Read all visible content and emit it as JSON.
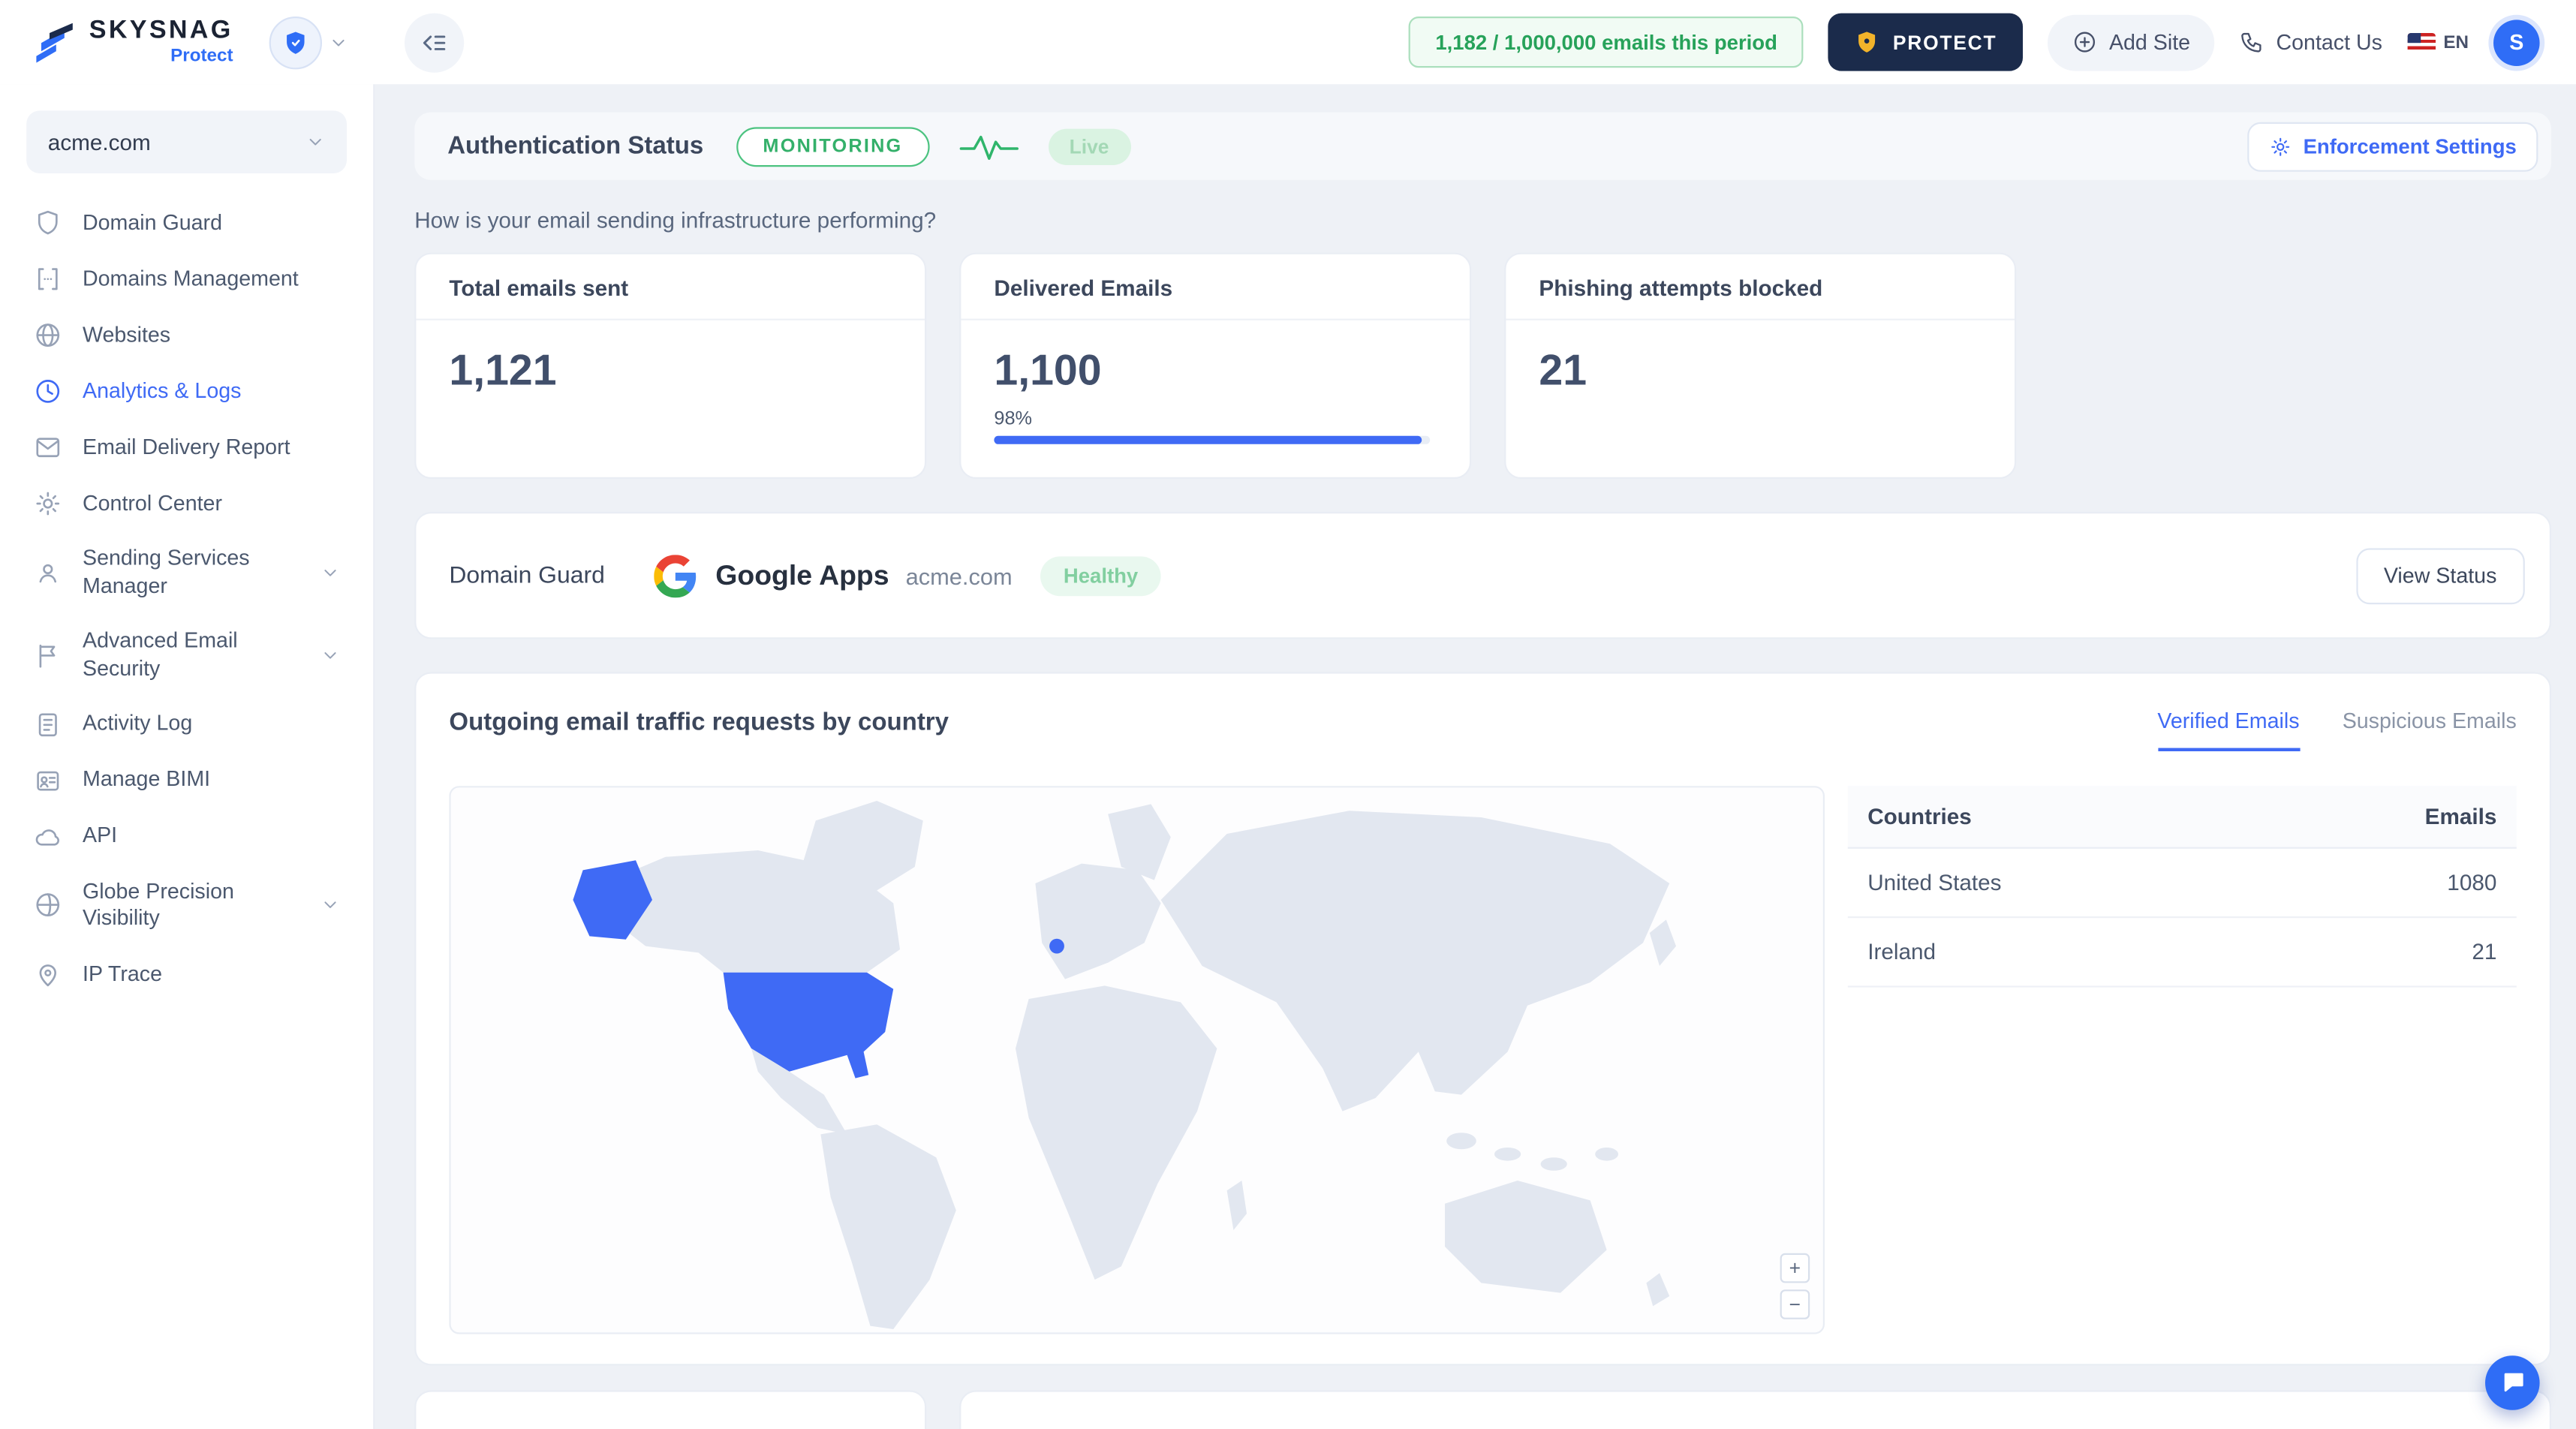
{
  "brand": {
    "name": "SKYSNAG",
    "product": "Protect"
  },
  "header": {
    "usage_pill": "1,182 / 1,000,000 emails this period",
    "protect_button": "PROTECT",
    "add_site_button": "Add Site",
    "contact_us": "Contact Us",
    "language": "EN",
    "avatar_initial": "S"
  },
  "sidebar": {
    "domain_selector": "acme.com",
    "items": [
      {
        "label": "Domain Guard"
      },
      {
        "label": "Domains Management"
      },
      {
        "label": "Websites"
      },
      {
        "label": "Analytics & Logs"
      },
      {
        "label": "Email Delivery Report"
      },
      {
        "label": "Control Center"
      },
      {
        "label": "Sending Services Manager"
      },
      {
        "label": "Advanced Email Security"
      },
      {
        "label": "Activity Log"
      },
      {
        "label": "Manage BIMI"
      },
      {
        "label": "API"
      },
      {
        "label": "Globe Precision Visibility"
      },
      {
        "label": "IP Trace"
      }
    ]
  },
  "main": {
    "auth": {
      "title": "Authentication Status",
      "mode": "MONITORING",
      "live_label": "Live",
      "enforcement_button": "Enforcement Settings"
    },
    "question": "How is your email sending infrastructure performing?",
    "stats": [
      {
        "title": "Total emails sent",
        "value": "1,121"
      },
      {
        "title": "Delivered Emails",
        "value": "1,100",
        "percent_label": "98%",
        "progress_width": "98%"
      },
      {
        "title": "Phishing attempts blocked",
        "value": "21"
      }
    ],
    "provider_card": {
      "label": "Domain Guard",
      "provider": "Google Apps",
      "domain": "acme.com",
      "status": "Healthy",
      "action": "View Status"
    },
    "traffic": {
      "title": "Outgoing email traffic requests by country",
      "tabs": [
        {
          "label": "Verified Emails"
        },
        {
          "label": "Suspicious Emails"
        }
      ],
      "countries_table": {
        "col_country": "Countries",
        "col_emails": "Emails",
        "rows": [
          {
            "country": "United States",
            "emails": "1080"
          },
          {
            "country": "Ireland",
            "emails": "21"
          }
        ]
      },
      "map_zoom_in": "+",
      "map_zoom_out": "−"
    }
  },
  "colors": {
    "accent": "#3f6af5",
    "green": "#2fb56b",
    "navy": "#1b2b4b",
    "gold": "#f2b32a",
    "page_bg": "#eef1f6"
  }
}
